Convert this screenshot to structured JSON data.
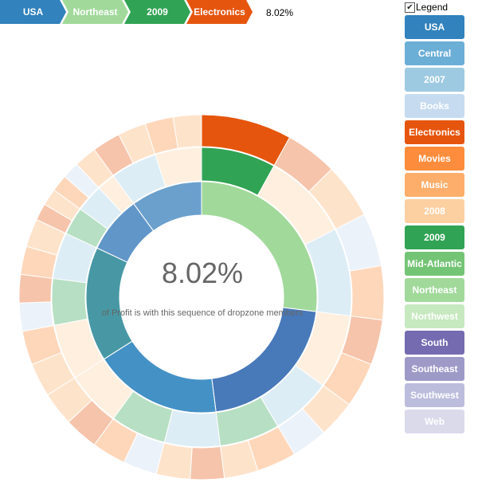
{
  "breadcrumb": {
    "items": [
      {
        "label": "USA",
        "color": "#3182bd"
      },
      {
        "label": "Northeast",
        "color": "#a1d99b"
      },
      {
        "label": "2009",
        "color": "#31a354"
      },
      {
        "label": "Electronics",
        "color": "#e6550d"
      }
    ],
    "percentage": "8.02%"
  },
  "center": {
    "percentage": "8.02%",
    "caption": "of Profit is with this sequence of dropzone members"
  },
  "legend": {
    "toggle_label": "Legend",
    "checked": true,
    "items": [
      {
        "label": "USA",
        "color": "#3182bd"
      },
      {
        "label": "Central",
        "color": "#6baed6"
      },
      {
        "label": "2007",
        "color": "#9ecae1"
      },
      {
        "label": "Books",
        "color": "#c6dbef"
      },
      {
        "label": "Electronics",
        "color": "#e6550d"
      },
      {
        "label": "Movies",
        "color": "#fd8d3c"
      },
      {
        "label": "Music",
        "color": "#fdae6b"
      },
      {
        "label": "2008",
        "color": "#fdd0a2"
      },
      {
        "label": "2009",
        "color": "#31a354"
      },
      {
        "label": "Mid-Atlantic",
        "color": "#74c476"
      },
      {
        "label": "Northeast",
        "color": "#a1d99b"
      },
      {
        "label": "Northwest",
        "color": "#c7e9c0"
      },
      {
        "label": "South",
        "color": "#756bb1"
      },
      {
        "label": "Southeast",
        "color": "#9e9ac8"
      },
      {
        "label": "Southwest",
        "color": "#bcbddc"
      },
      {
        "label": "Web",
        "color": "#dadaeb"
      }
    ]
  },
  "chart_data": {
    "type": "sunburst",
    "highlighted_path": [
      "USA",
      "Northeast",
      "2009",
      "Electronics"
    ],
    "highlighted_share": "8.02%",
    "root": {
      "name": "USA",
      "children": [
        {
          "name": "Northeast",
          "value": 27,
          "children": [
            {
              "name": "2009",
              "value": 8.02,
              "children": [
                {
                  "name": "Electronics",
                  "value": 8.02
                }
              ]
            },
            {
              "name": "2008",
              "value": 9.5,
              "children": [
                {
                  "name": "Electronics",
                  "value": 4.6
                },
                {
                  "name": "Music",
                  "value": 4.9
                }
              ]
            },
            {
              "name": "2007",
              "value": 9.48,
              "children": [
                {
                  "name": "Books",
                  "value": 4.7
                },
                {
                  "name": "Movies",
                  "value": 4.78
                }
              ]
            }
          ]
        },
        {
          "name": "South",
          "value": 21,
          "children": [
            {
              "name": "2008",
              "value": 8,
              "children": [
                {
                  "name": "Electronics",
                  "value": 4
                },
                {
                  "name": "Movies",
                  "value": 4
                }
              ]
            },
            {
              "name": "2007",
              "value": 6.5,
              "children": [
                {
                  "name": "Music",
                  "value": 3.3
                },
                {
                  "name": "Books",
                  "value": 3.2
                }
              ]
            },
            {
              "name": "2009",
              "value": 6.5,
              "children": [
                {
                  "name": "Movies",
                  "value": 3.5
                },
                {
                  "name": "Music",
                  "value": 3
                }
              ]
            }
          ]
        },
        {
          "name": "Central",
          "value": 18,
          "children": [
            {
              "name": "2007",
              "value": 6,
              "children": [
                {
                  "name": "Electronics",
                  "value": 3
                },
                {
                  "name": "Music",
                  "value": 3
                }
              ]
            },
            {
              "name": "2009",
              "value": 6,
              "children": [
                {
                  "name": "Books",
                  "value": 3
                },
                {
                  "name": "Movies",
                  "value": 3
                }
              ]
            },
            {
              "name": "2008",
              "value": 6,
              "children": [
                {
                  "name": "Electronics",
                  "value": 3
                },
                {
                  "name": "Music",
                  "value": 3
                }
              ]
            }
          ]
        },
        {
          "name": "Mid-Atlantic",
          "value": 16,
          "children": [
            {
              "name": "2008",
              "value": 6,
              "children": [
                {
                  "name": "Music",
                  "value": 3
                },
                {
                  "name": "Movies",
                  "value": 3
                }
              ]
            },
            {
              "name": "2009",
              "value": 5,
              "children": [
                {
                  "name": "Books",
                  "value": 2.5
                },
                {
                  "name": "Electronics",
                  "value": 2.5
                }
              ]
            },
            {
              "name": "2007",
              "value": 5,
              "children": [
                {
                  "name": "Movies",
                  "value": 2.5
                },
                {
                  "name": "Music",
                  "value": 2.5
                }
              ]
            }
          ]
        },
        {
          "name": "Southwest",
          "value": 8,
          "children": [
            {
              "name": "2009",
              "value": 3,
              "children": [
                {
                  "name": "Electronics",
                  "value": 1.5
                },
                {
                  "name": "Music",
                  "value": 1.5
                }
              ]
            },
            {
              "name": "2007",
              "value": 3,
              "children": [
                {
                  "name": "Movies",
                  "value": 1.5
                },
                {
                  "name": "Books",
                  "value": 1.5
                }
              ]
            },
            {
              "name": "2008",
              "value": 2,
              "children": [
                {
                  "name": "Music",
                  "value": 2
                }
              ]
            }
          ]
        },
        {
          "name": "Web",
          "value": 10,
          "children": [
            {
              "name": "2007",
              "value": 5,
              "children": [
                {
                  "name": "Electronics",
                  "value": 2.5
                },
                {
                  "name": "Music",
                  "value": 2.5
                }
              ]
            },
            {
              "name": "2008",
              "value": 5,
              "children": [
                {
                  "name": "Movies",
                  "value": 2.5
                },
                {
                  "name": "Music",
                  "value": 2.5
                }
              ]
            }
          ]
        }
      ]
    }
  }
}
